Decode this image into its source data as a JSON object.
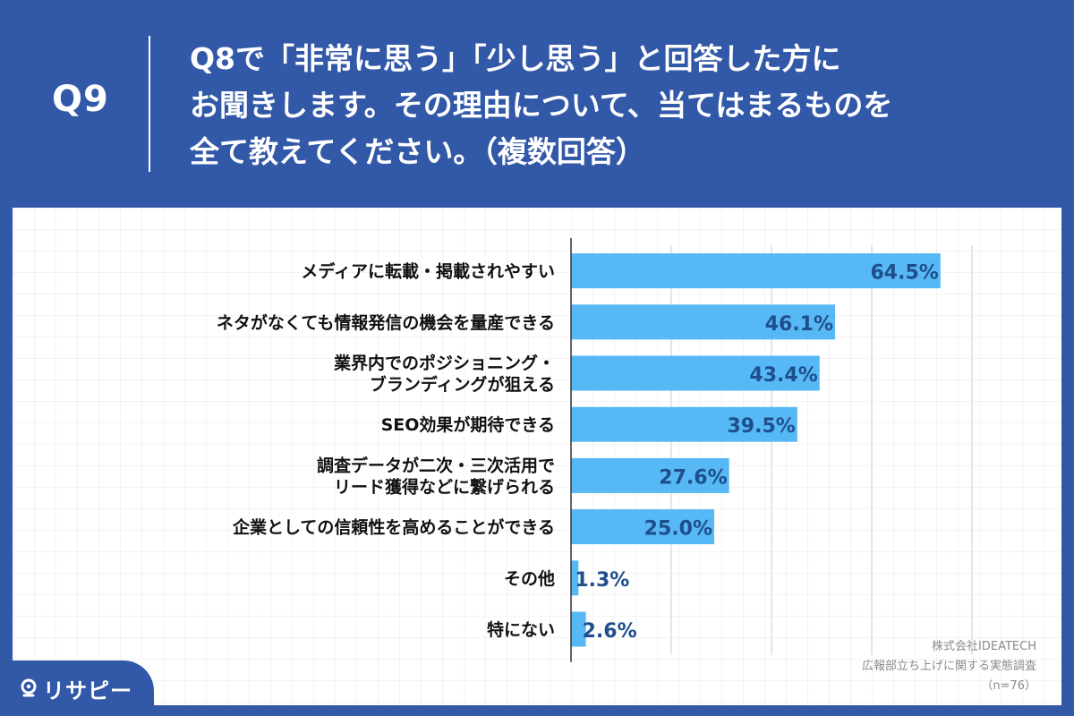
{
  "header": {
    "qnum": "Q9",
    "question_lines": [
      "Q8で「非常に思う」「少し思う」と回答した方に",
      "お聞きします。その理由について、当てはまるものを",
      "全て教えてください。（複数回答）"
    ]
  },
  "credit": {
    "company": "株式会社IDEATECH",
    "survey": "広報部立ち上げに関する実態調査",
    "sample": "（n=76）"
  },
  "logo": {
    "text": "リサピー",
    "icon": "pin-icon"
  },
  "colors": {
    "bar": "#56b8f5",
    "value_text": "#1e4f8c",
    "header_bg": "#3258a8",
    "axis": "#333333",
    "grid": "#cccccc"
  },
  "chart_data": {
    "type": "bar",
    "orientation": "horizontal",
    "unit": "%",
    "xlim": [
      0,
      100
    ],
    "grid": true,
    "categories": [
      [
        "メディアに転載・掲載されやすい"
      ],
      [
        "ネタがなくても情報発信の機会を量産できる"
      ],
      [
        "業界内でのポジショニング・",
        "ブランディングが狙える"
      ],
      [
        "SEO効果が期待できる"
      ],
      [
        "調査データが二次・三次活用で",
        "リード獲得などに繋げられる"
      ],
      [
        "企業としての信頼性を高めることができる"
      ],
      [
        "その他"
      ],
      [
        "特にない"
      ]
    ],
    "values": [
      64.5,
      46.1,
      43.4,
      39.5,
      27.6,
      25.0,
      1.3,
      2.6
    ],
    "labels": [
      "64.5%",
      "46.1%",
      "43.4%",
      "39.5%",
      "27.6%",
      "25.0%",
      "1.3%",
      "2.6%"
    ]
  }
}
